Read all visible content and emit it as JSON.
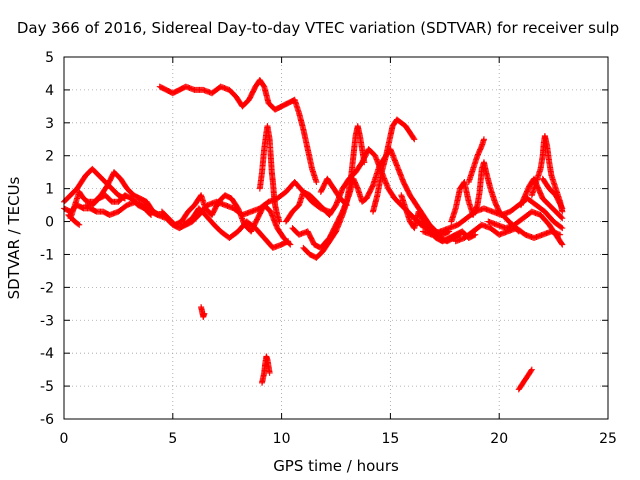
{
  "chart_data": {
    "type": "scatter",
    "title": "Day 366 of 2016, Sidereal Day-to-day VTEC variation (SDTVAR) for receiver sulp",
    "xlabel": "GPS time / hours",
    "ylabel": "SDTVAR / TECUs",
    "xlim": [
      0,
      25
    ],
    "ylim": [
      -6,
      5
    ],
    "xticks": [
      0,
      5,
      10,
      15,
      20,
      25
    ],
    "yticks": [
      -6,
      -5,
      -4,
      -3,
      -2,
      -1,
      0,
      1,
      2,
      3,
      4,
      5
    ],
    "grid": true,
    "marker": "+",
    "series_color": "#ff0000",
    "tracks": [
      [
        [
          0.0,
          0.6
        ],
        [
          0.3,
          0.8
        ],
        [
          0.6,
          1.0
        ],
        [
          0.8,
          1.2
        ],
        [
          1.0,
          1.4
        ],
        [
          1.3,
          1.6
        ],
        [
          1.6,
          1.4
        ],
        [
          1.9,
          1.2
        ],
        [
          2.2,
          1.0
        ],
        [
          2.5,
          0.8
        ],
        [
          2.8,
          0.7
        ]
      ],
      [
        [
          0.0,
          0.4
        ],
        [
          0.3,
          0.3
        ],
        [
          0.6,
          0.5
        ],
        [
          0.9,
          0.4
        ],
        [
          1.2,
          0.4
        ],
        [
          1.5,
          0.3
        ],
        [
          1.8,
          0.3
        ],
        [
          2.1,
          0.2
        ],
        [
          2.5,
          0.3
        ],
        [
          2.9,
          0.5
        ],
        [
          3.3,
          0.6
        ],
        [
          3.7,
          0.5
        ],
        [
          4.0,
          0.3
        ],
        [
          4.3,
          0.2
        ],
        [
          4.7,
          0.1
        ],
        [
          5.0,
          -0.1
        ],
        [
          5.3,
          -0.2
        ],
        [
          5.6,
          -0.1
        ],
        [
          5.9,
          0.0
        ],
        [
          6.2,
          0.2
        ],
        [
          6.6,
          0.5
        ],
        [
          7.0,
          0.6
        ],
        [
          7.4,
          0.5
        ],
        [
          7.8,
          0.4
        ],
        [
          8.2,
          0.2
        ],
        [
          8.6,
          0.3
        ],
        [
          9.0,
          0.4
        ],
        [
          9.4,
          0.6
        ],
        [
          9.8,
          0.7
        ],
        [
          10.2,
          0.9
        ],
        [
          10.6,
          1.2
        ],
        [
          11.0,
          0.9
        ],
        [
          11.4,
          0.6
        ],
        [
          11.8,
          0.4
        ],
        [
          12.2,
          0.3
        ]
      ],
      [
        [
          0.2,
          0.2
        ],
        [
          0.5,
          0.0
        ],
        [
          0.7,
          -0.1
        ]
      ],
      [
        [
          0.3,
          0.1
        ],
        [
          0.5,
          0.5
        ],
        [
          0.7,
          0.9
        ],
        [
          0.9,
          0.7
        ],
        [
          1.1,
          0.6
        ],
        [
          1.4,
          0.6
        ],
        [
          1.7,
          0.8
        ],
        [
          2.0,
          1.1
        ],
        [
          2.3,
          1.5
        ],
        [
          2.6,
          1.3
        ],
        [
          2.9,
          1.0
        ],
        [
          3.2,
          0.8
        ],
        [
          3.5,
          0.7
        ],
        [
          3.8,
          0.6
        ],
        [
          4.1,
          0.3
        ],
        [
          4.4,
          0.2
        ]
      ],
      [
        [
          1.0,
          0.5
        ],
        [
          1.3,
          0.5
        ],
        [
          1.6,
          0.7
        ],
        [
          1.9,
          0.8
        ],
        [
          2.2,
          0.6
        ],
        [
          2.5,
          0.6
        ],
        [
          2.8,
          0.8
        ],
        [
          3.1,
          0.7
        ],
        [
          3.4,
          0.5
        ],
        [
          3.7,
          0.4
        ],
        [
          4.0,
          0.2
        ]
      ],
      [
        [
          4.4,
          4.1
        ],
        [
          4.7,
          4.0
        ],
        [
          5.0,
          3.9
        ],
        [
          5.3,
          4.0
        ],
        [
          5.6,
          4.1
        ],
        [
          6.0,
          4.0
        ],
        [
          6.4,
          4.0
        ],
        [
          6.8,
          3.9
        ],
        [
          7.2,
          4.1
        ],
        [
          7.6,
          4.0
        ],
        [
          7.9,
          3.8
        ],
        [
          8.2,
          3.5
        ],
        [
          8.5,
          3.7
        ],
        [
          8.8,
          4.1
        ],
        [
          9.0,
          4.3
        ],
        [
          9.2,
          4.1
        ],
        [
          9.4,
          3.6
        ],
        [
          9.7,
          3.4
        ],
        [
          10.0,
          3.5
        ],
        [
          10.3,
          3.6
        ],
        [
          10.6,
          3.7
        ],
        [
          10.8,
          3.3
        ],
        [
          11.0,
          2.8
        ],
        [
          11.2,
          2.2
        ],
        [
          11.4,
          1.6
        ],
        [
          11.6,
          1.2
        ]
      ],
      [
        [
          4.5,
          0.3
        ],
        [
          4.8,
          0.1
        ],
        [
          5.1,
          -0.1
        ],
        [
          5.4,
          0.0
        ],
        [
          5.7,
          0.3
        ],
        [
          6.0,
          0.5
        ],
        [
          6.3,
          0.8
        ],
        [
          6.5,
          0.4
        ],
        [
          6.8,
          0.2
        ],
        [
          7.1,
          0.6
        ],
        [
          7.4,
          0.8
        ],
        [
          7.7,
          0.7
        ],
        [
          8.0,
          0.4
        ],
        [
          8.3,
          -0.1
        ],
        [
          8.6,
          -0.3
        ],
        [
          8.9,
          0.1
        ],
        [
          9.2,
          0.5
        ],
        [
          9.5,
          0.3
        ],
        [
          9.8,
          -0.2
        ],
        [
          10.1,
          -0.5
        ],
        [
          10.4,
          -0.7
        ]
      ],
      [
        [
          5.5,
          -0.1
        ],
        [
          5.9,
          0.1
        ],
        [
          6.2,
          0.4
        ],
        [
          6.5,
          0.2
        ],
        [
          6.9,
          -0.1
        ],
        [
          7.2,
          -0.3
        ],
        [
          7.6,
          -0.5
        ],
        [
          8.0,
          -0.3
        ],
        [
          8.4,
          0.0
        ],
        [
          8.8,
          -0.2
        ],
        [
          9.2,
          -0.5
        ],
        [
          9.6,
          -0.8
        ],
        [
          10.0,
          -0.7
        ],
        [
          10.3,
          -0.6
        ]
      ],
      [
        [
          6.3,
          -2.6
        ],
        [
          6.35,
          -2.75
        ],
        [
          6.4,
          -2.9
        ],
        [
          6.45,
          -2.8
        ]
      ],
      [
        [
          9.0,
          1.0
        ],
        [
          9.1,
          1.5
        ],
        [
          9.2,
          2.2
        ],
        [
          9.3,
          2.7
        ],
        [
          9.35,
          2.9
        ],
        [
          9.45,
          2.5
        ],
        [
          9.5,
          2.0
        ],
        [
          9.55,
          1.5
        ],
        [
          9.6,
          1.2
        ],
        [
          9.65,
          0.8
        ],
        [
          9.7,
          0.5
        ],
        [
          9.8,
          0.2
        ],
        [
          9.9,
          0.0
        ]
      ],
      [
        [
          9.1,
          -4.9
        ],
        [
          9.2,
          -4.6
        ],
        [
          9.25,
          -4.3
        ],
        [
          9.3,
          -4.1
        ],
        [
          9.35,
          -4.2
        ],
        [
          9.4,
          -4.4
        ],
        [
          9.45,
          -4.6
        ]
      ],
      [
        [
          10.2,
          0.0
        ],
        [
          10.5,
          0.3
        ],
        [
          10.8,
          0.5
        ],
        [
          11.0,
          0.9
        ],
        [
          11.3,
          0.8
        ],
        [
          11.6,
          0.6
        ],
        [
          11.9,
          0.4
        ],
        [
          12.2,
          0.2
        ],
        [
          12.5,
          0.5
        ],
        [
          12.8,
          1.0
        ],
        [
          13.1,
          1.3
        ],
        [
          13.4,
          1.5
        ],
        [
          13.7,
          1.8
        ],
        [
          14.0,
          2.2
        ],
        [
          14.3,
          2.0
        ],
        [
          14.6,
          1.5
        ],
        [
          14.9,
          1.0
        ],
        [
          15.2,
          0.7
        ],
        [
          15.5,
          0.5
        ],
        [
          15.8,
          0.3
        ],
        [
          16.1,
          0.1
        ],
        [
          16.4,
          -0.1
        ],
        [
          16.7,
          -0.2
        ],
        [
          17.0,
          -0.3
        ],
        [
          17.3,
          -0.5
        ],
        [
          17.6,
          -0.6
        ],
        [
          17.9,
          -0.5
        ],
        [
          18.2,
          -0.4
        ]
      ],
      [
        [
          10.5,
          -0.2
        ],
        [
          10.8,
          -0.4
        ],
        [
          11.2,
          -0.3
        ],
        [
          11.5,
          -0.7
        ],
        [
          11.8,
          -0.8
        ],
        [
          12.2,
          -0.5
        ],
        [
          12.5,
          -0.1
        ],
        [
          12.8,
          0.3
        ],
        [
          13.1,
          0.8
        ],
        [
          13.3,
          1.3
        ],
        [
          13.5,
          1.0
        ],
        [
          13.7,
          0.6
        ],
        [
          13.9,
          0.7
        ],
        [
          14.2,
          1.1
        ],
        [
          14.5,
          1.7
        ],
        [
          14.8,
          2.0
        ],
        [
          15.0,
          2.2
        ],
        [
          15.3,
          1.7
        ],
        [
          15.6,
          1.2
        ],
        [
          15.9,
          0.8
        ],
        [
          16.2,
          0.5
        ],
        [
          16.5,
          0.2
        ],
        [
          16.8,
          -0.1
        ],
        [
          17.1,
          -0.3
        ],
        [
          17.4,
          -0.4
        ],
        [
          17.7,
          -0.3
        ]
      ],
      [
        [
          11.0,
          -0.8
        ],
        [
          11.3,
          -1.0
        ],
        [
          11.6,
          -1.1
        ],
        [
          11.9,
          -0.9
        ],
        [
          12.2,
          -0.6
        ],
        [
          12.5,
          -0.3
        ],
        [
          12.8,
          0.2
        ],
        [
          13.0,
          0.6
        ],
        [
          13.2,
          1.4
        ],
        [
          13.3,
          2.0
        ],
        [
          13.4,
          2.6
        ],
        [
          13.5,
          2.9
        ],
        [
          13.6,
          2.6
        ],
        [
          13.7,
          2.2
        ],
        [
          13.8,
          1.8
        ]
      ],
      [
        [
          11.8,
          0.9
        ],
        [
          12.1,
          1.3
        ],
        [
          12.4,
          1.0
        ],
        [
          12.7,
          0.7
        ],
        [
          13.0,
          0.5
        ]
      ],
      [
        [
          14.2,
          0.3
        ],
        [
          14.4,
          0.8
        ],
        [
          14.6,
          1.5
        ],
        [
          14.8,
          2.0
        ],
        [
          15.0,
          2.6
        ],
        [
          15.1,
          2.9
        ],
        [
          15.3,
          3.1
        ],
        [
          15.5,
          3.0
        ],
        [
          15.7,
          2.9
        ],
        [
          15.9,
          2.7
        ],
        [
          16.1,
          2.5
        ]
      ],
      [
        [
          15.5,
          0.8
        ],
        [
          15.7,
          0.4
        ],
        [
          15.9,
          0.0
        ],
        [
          16.1,
          -0.2
        ],
        [
          16.3,
          0.3
        ],
        [
          16.5,
          0.0
        ],
        [
          16.8,
          -0.3
        ],
        [
          17.1,
          -0.5
        ],
        [
          17.4,
          -0.6
        ],
        [
          17.7,
          -0.5
        ],
        [
          18.0,
          -0.4
        ],
        [
          18.3,
          -0.3
        ],
        [
          18.6,
          -0.5
        ],
        [
          18.9,
          -0.4
        ]
      ],
      [
        [
          16.5,
          -0.3
        ],
        [
          16.9,
          -0.4
        ],
        [
          17.3,
          -0.3
        ],
        [
          17.7,
          -0.2
        ],
        [
          18.1,
          -0.1
        ],
        [
          18.5,
          0.1
        ],
        [
          18.9,
          0.3
        ],
        [
          19.3,
          0.4
        ],
        [
          19.7,
          0.3
        ],
        [
          20.1,
          0.2
        ],
        [
          20.5,
          0.3
        ],
        [
          20.9,
          0.5
        ],
        [
          21.3,
          0.7
        ],
        [
          21.7,
          0.5
        ],
        [
          22.1,
          0.3
        ],
        [
          22.5,
          0.0
        ],
        [
          22.9,
          -0.2
        ]
      ],
      [
        [
          17.8,
          0.0
        ],
        [
          18.0,
          0.4
        ],
        [
          18.2,
          1.0
        ],
        [
          18.4,
          1.2
        ],
        [
          18.6,
          0.6
        ],
        [
          18.8,
          0.2
        ],
        [
          19.0,
          0.5
        ],
        [
          19.1,
          0.9
        ],
        [
          19.2,
          1.6
        ],
        [
          19.3,
          1.8
        ],
        [
          19.4,
          1.5
        ],
        [
          19.6,
          1.0
        ],
        [
          19.8,
          0.6
        ],
        [
          20.0,
          0.3
        ],
        [
          20.3,
          0.1
        ],
        [
          20.6,
          -0.1
        ],
        [
          20.9,
          -0.3
        ]
      ],
      [
        [
          18.6,
          1.2
        ],
        [
          18.8,
          1.6
        ],
        [
          19.0,
          2.0
        ],
        [
          19.2,
          2.3
        ],
        [
          19.3,
          2.5
        ]
      ],
      [
        [
          18.0,
          -0.6
        ],
        [
          18.4,
          -0.5
        ],
        [
          18.8,
          -0.3
        ],
        [
          19.2,
          -0.1
        ],
        [
          19.6,
          -0.2
        ],
        [
          20.0,
          -0.4
        ],
        [
          20.4,
          -0.3
        ],
        [
          20.8,
          -0.2
        ],
        [
          21.2,
          -0.4
        ],
        [
          21.6,
          -0.5
        ],
        [
          22.0,
          -0.4
        ],
        [
          22.4,
          -0.3
        ],
        [
          22.8,
          -0.4
        ]
      ],
      [
        [
          19.5,
          0.0
        ],
        [
          19.9,
          -0.1
        ],
        [
          20.3,
          -0.2
        ],
        [
          20.7,
          -0.1
        ],
        [
          21.1,
          0.1
        ],
        [
          21.5,
          0.3
        ],
        [
          21.9,
          0.2
        ],
        [
          22.3,
          -0.1
        ],
        [
          22.6,
          -0.4
        ],
        [
          22.9,
          -0.7
        ]
      ],
      [
        [
          20.9,
          -5.1
        ],
        [
          21.1,
          -4.9
        ],
        [
          21.3,
          -4.7
        ],
        [
          21.5,
          -4.5
        ]
      ],
      [
        [
          21.5,
          0.8
        ],
        [
          21.7,
          1.2
        ],
        [
          21.9,
          1.6
        ],
        [
          22.0,
          2.0
        ],
        [
          22.05,
          2.4
        ],
        [
          22.1,
          2.6
        ],
        [
          22.2,
          2.3
        ],
        [
          22.3,
          1.8
        ],
        [
          22.4,
          1.4
        ],
        [
          22.6,
          1.0
        ],
        [
          22.8,
          0.6
        ],
        [
          22.9,
          0.3
        ]
      ],
      [
        [
          21.0,
          0.5
        ],
        [
          21.2,
          0.8
        ],
        [
          21.4,
          1.1
        ],
        [
          21.6,
          1.3
        ],
        [
          21.8,
          1.0
        ],
        [
          22.0,
          0.7
        ],
        [
          22.3,
          0.5
        ],
        [
          22.6,
          0.3
        ],
        [
          22.9,
          0.1
        ]
      ],
      [
        [
          22.0,
          1.3
        ],
        [
          22.3,
          1.0
        ],
        [
          22.6,
          0.8
        ],
        [
          22.9,
          0.4
        ]
      ]
    ]
  }
}
